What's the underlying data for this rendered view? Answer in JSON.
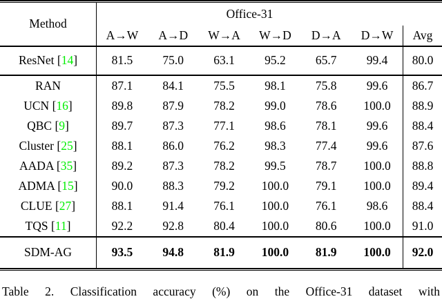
{
  "table": {
    "method_header": "Method",
    "group_header": "Office-31",
    "task_headers": [
      "A→W",
      "A→D",
      "W→A",
      "W→D",
      "D→A",
      "D→W"
    ],
    "avg_header": "Avg",
    "citation_color": "#00EE00",
    "rows": [
      {
        "method": "ResNet",
        "cite_open": " [",
        "cite": "14",
        "cite_close": "]",
        "values": [
          "81.5",
          "75.0",
          "63.1",
          "95.2",
          "65.7",
          "99.4"
        ],
        "avg": "80.0"
      },
      {
        "method": "RAN",
        "values": [
          "87.1",
          "84.1",
          "75.5",
          "98.1",
          "75.8",
          "99.6"
        ],
        "avg": "86.7"
      },
      {
        "method": "UCN",
        "cite_open": " [",
        "cite": "16",
        "cite_close": "]",
        "values": [
          "89.8",
          "87.9",
          "78.2",
          "99.0",
          "78.6",
          "100.0"
        ],
        "avg": "88.9"
      },
      {
        "method": "QBC",
        "cite_open": " [",
        "cite": "9",
        "cite_close": "]",
        "values": [
          "89.7",
          "87.3",
          "77.1",
          "98.6",
          "78.1",
          "99.6"
        ],
        "avg": "88.4"
      },
      {
        "method": "Cluster",
        "cite_open": " [",
        "cite": "25",
        "cite_close": "]",
        "values": [
          "88.1",
          "86.0",
          "76.2",
          "98.3",
          "77.4",
          "99.6"
        ],
        "avg": "87.6"
      },
      {
        "method": "AADA",
        "cite_open": " [",
        "cite": "35",
        "cite_close": "]",
        "values": [
          "89.2",
          "87.3",
          "78.2",
          "99.5",
          "78.7",
          "100.0"
        ],
        "avg": "88.8"
      },
      {
        "method": "ADMA",
        "cite_open": " [",
        "cite": "15",
        "cite_close": "]",
        "values": [
          "90.0",
          "88.3",
          "79.2",
          "100.0",
          "79.1",
          "100.0"
        ],
        "avg": "89.4"
      },
      {
        "method": "CLUE",
        "cite_open": " [",
        "cite": "27",
        "cite_close": "]",
        "values": [
          "88.1",
          "91.4",
          "76.1",
          "100.0",
          "76.1",
          "98.6"
        ],
        "avg": "88.4"
      },
      {
        "method": "TQS",
        "cite_open": " [",
        "cite": "11",
        "cite_close": "]",
        "values": [
          "92.2",
          "92.8",
          "80.4",
          "100.0",
          "80.6",
          "100.0"
        ],
        "avg": "91.0"
      },
      {
        "method": "SDM-AG",
        "values": [
          "93.5",
          "94.8",
          "81.9",
          "100.0",
          "81.9",
          "100.0"
        ],
        "avg": "92.0"
      }
    ]
  },
  "caption": {
    "text": "Table 2. Classification accuracy (%) on the Office-31 dataset with"
  }
}
